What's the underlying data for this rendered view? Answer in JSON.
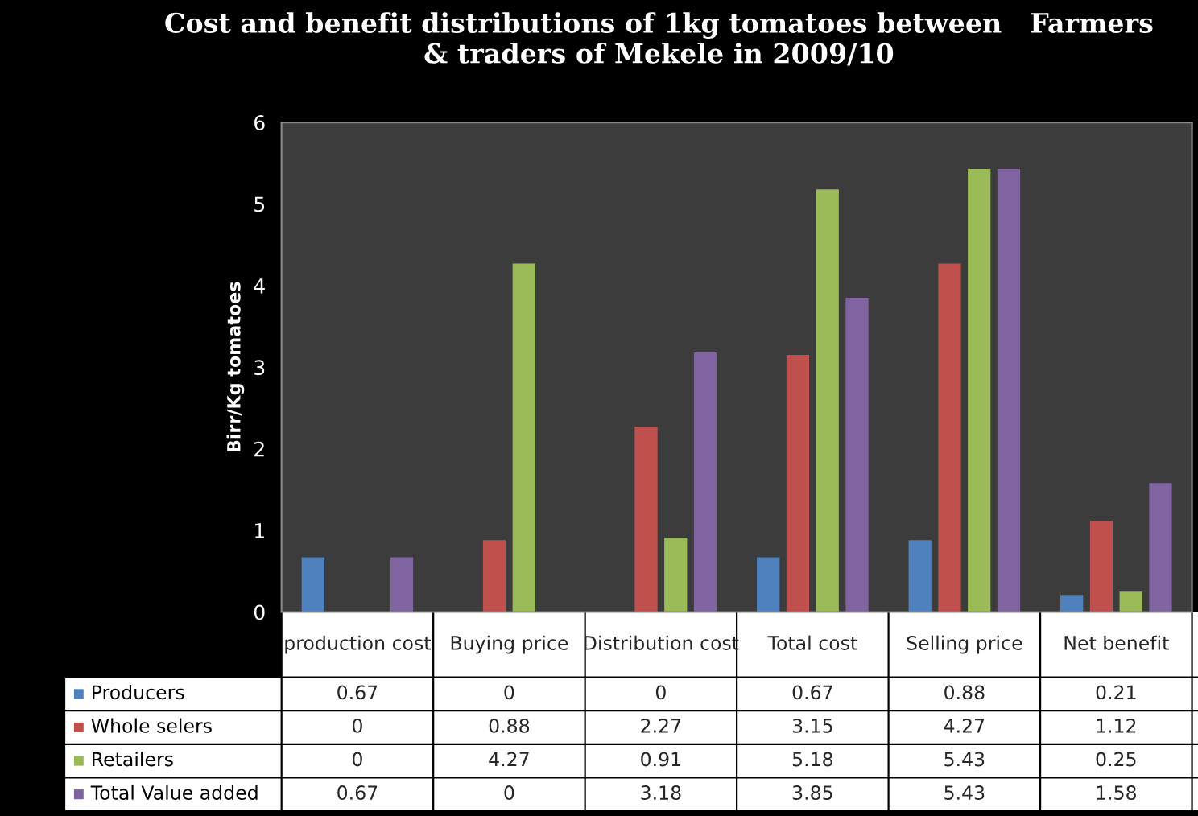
{
  "chart_data": {
    "type": "bar",
    "title": "Cost and benefit distributions of 1kg tomatoes between   Farmers\n& traders of Mekele in 2009/10",
    "ylabel": "Birr/Kg tomatoes",
    "categories": [
      "production cost",
      "Buying price",
      "Distribution cost",
      "Total cost",
      "Selling price",
      "Net benefit"
    ],
    "series": [
      {
        "name": "Producers",
        "color": "#4f81bd",
        "values": [
          0.67,
          0,
          0,
          0.67,
          0.88,
          0.21
        ]
      },
      {
        "name": "Whole selers",
        "color": "#c0504d",
        "values": [
          0,
          0.88,
          2.27,
          3.15,
          4.27,
          1.12
        ]
      },
      {
        "name": "Retailers",
        "color": "#9bbb59",
        "values": [
          0,
          4.27,
          0.91,
          5.18,
          5.43,
          0.25
        ]
      },
      {
        "name": "Total Value added",
        "color": "#8064a2",
        "values": [
          0.67,
          0,
          3.18,
          3.85,
          5.43,
          1.58
        ]
      }
    ],
    "ylim": [
      0,
      6
    ],
    "yticks": [
      0,
      1,
      2,
      3,
      4,
      5,
      6
    ],
    "grid": false,
    "legend": "bottom",
    "data_labels": true
  }
}
